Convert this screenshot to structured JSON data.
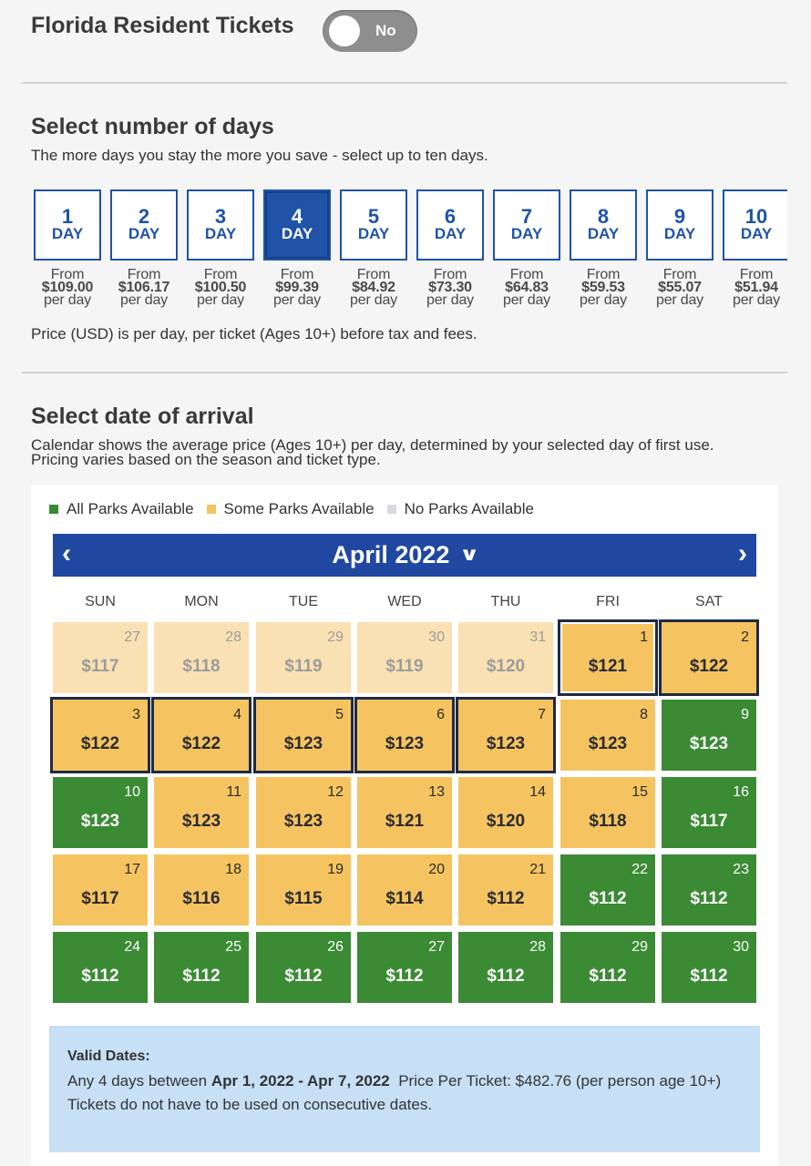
{
  "resident": {
    "title": "Florida Resident Tickets",
    "toggle_label": "No"
  },
  "days_section": {
    "title": "Select number of days",
    "subtitle": "The more days you stay the more you save - select up to ten days.",
    "unit": "DAY",
    "from_label": "From",
    "per_label": "per day",
    "selected": 4,
    "options": [
      {
        "num": "1",
        "price": "$109.00"
      },
      {
        "num": "2",
        "price": "$106.17"
      },
      {
        "num": "3",
        "price": "$100.50"
      },
      {
        "num": "4",
        "price": "$99.39"
      },
      {
        "num": "5",
        "price": "$84.92"
      },
      {
        "num": "6",
        "price": "$73.30"
      },
      {
        "num": "7",
        "price": "$64.83"
      },
      {
        "num": "8",
        "price": "$59.53"
      },
      {
        "num": "9",
        "price": "$55.07"
      },
      {
        "num": "10",
        "price": "$51.94"
      }
    ],
    "note": "Price (USD) is per day, per ticket (Ages 10+) before tax and fees."
  },
  "arrival_section": {
    "title": "Select date of arrival",
    "subtitle_line1": "Calendar shows the average price (Ages 10+) per day, determined by your selected day of first use.",
    "subtitle_line2": "Pricing varies based on the season and ticket type."
  },
  "legend": [
    {
      "label": "All Parks Available",
      "color": "#3b8a34"
    },
    {
      "label": "Some Parks Available",
      "color": "#f5c461"
    },
    {
      "label": "No Parks Available",
      "color": "#d9dbe3"
    }
  ],
  "calendar": {
    "month": "April 2022",
    "prev_icon": "chevron-left-icon",
    "next_icon": "chevron-right-icon",
    "weekdays": [
      "SUN",
      "MON",
      "TUE",
      "WED",
      "THU",
      "FRI",
      "SAT"
    ],
    "weeks": [
      [
        {
          "day": "27",
          "price": "$117",
          "status": "past"
        },
        {
          "day": "28",
          "price": "$118",
          "status": "past"
        },
        {
          "day": "29",
          "price": "$119",
          "status": "past"
        },
        {
          "day": "30",
          "price": "$119",
          "status": "past"
        },
        {
          "day": "31",
          "price": "$120",
          "status": "past"
        },
        {
          "day": "1",
          "price": "$121",
          "status": "some",
          "mark": "first"
        },
        {
          "day": "2",
          "price": "$122",
          "status": "some",
          "mark": "range"
        }
      ],
      [
        {
          "day": "3",
          "price": "$122",
          "status": "some",
          "mark": "range"
        },
        {
          "day": "4",
          "price": "$122",
          "status": "some",
          "mark": "range"
        },
        {
          "day": "5",
          "price": "$123",
          "status": "some",
          "mark": "range"
        },
        {
          "day": "6",
          "price": "$123",
          "status": "some",
          "mark": "range"
        },
        {
          "day": "7",
          "price": "$123",
          "status": "some",
          "mark": "range"
        },
        {
          "day": "8",
          "price": "$123",
          "status": "some"
        },
        {
          "day": "9",
          "price": "$123",
          "status": "all"
        }
      ],
      [
        {
          "day": "10",
          "price": "$123",
          "status": "all"
        },
        {
          "day": "11",
          "price": "$123",
          "status": "some"
        },
        {
          "day": "12",
          "price": "$123",
          "status": "some"
        },
        {
          "day": "13",
          "price": "$121",
          "status": "some"
        },
        {
          "day": "14",
          "price": "$120",
          "status": "some"
        },
        {
          "day": "15",
          "price": "$118",
          "status": "some"
        },
        {
          "day": "16",
          "price": "$117",
          "status": "all"
        }
      ],
      [
        {
          "day": "17",
          "price": "$117",
          "status": "some"
        },
        {
          "day": "18",
          "price": "$116",
          "status": "some"
        },
        {
          "day": "19",
          "price": "$115",
          "status": "some"
        },
        {
          "day": "20",
          "price": "$114",
          "status": "some"
        },
        {
          "day": "21",
          "price": "$112",
          "status": "some"
        },
        {
          "day": "22",
          "price": "$112",
          "status": "all"
        },
        {
          "day": "23",
          "price": "$112",
          "status": "all"
        }
      ],
      [
        {
          "day": "24",
          "price": "$112",
          "status": "all"
        },
        {
          "day": "25",
          "price": "$112",
          "status": "all"
        },
        {
          "day": "26",
          "price": "$112",
          "status": "all"
        },
        {
          "day": "27",
          "price": "$112",
          "status": "all"
        },
        {
          "day": "28",
          "price": "$112",
          "status": "all"
        },
        {
          "day": "29",
          "price": "$112",
          "status": "all"
        },
        {
          "day": "30",
          "price": "$112",
          "status": "all"
        }
      ]
    ]
  },
  "valid_dates": {
    "title": "Valid Dates:",
    "prefix": "Any 4 days between ",
    "range": "Apr 1, 2022 - Apr 7, 2022",
    "price_text": "Price Per Ticket: $482.76 (per person age 10+)",
    "note": "Tickets do not have to be used on consecutive dates."
  }
}
